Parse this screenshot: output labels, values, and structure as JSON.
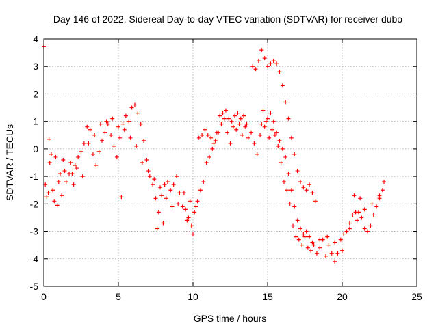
{
  "chart_data": {
    "type": "scatter",
    "title": "Day 146 of 2022, Sidereal Day-to-day VTEC variation (SDTVAR) for receiver dubo",
    "xlabel": "GPS time / hours",
    "ylabel": "SDTVAR / TECUs",
    "xlim": [
      0,
      25
    ],
    "ylim": [
      -5,
      4
    ],
    "xticks": [
      0,
      5,
      10,
      15,
      20,
      25
    ],
    "yticks": [
      -5,
      -4,
      -3,
      -2,
      -1,
      0,
      1,
      2,
      3,
      4
    ],
    "grid": true,
    "marker": "+",
    "color": "#ff0000",
    "series": [
      {
        "name": "SDTVAR",
        "points": [
          [
            0.0,
            3.72
          ],
          [
            0.1,
            -1.3
          ],
          [
            0.2,
            -1.75
          ],
          [
            0.3,
            -1.6
          ],
          [
            0.35,
            0.35
          ],
          [
            0.5,
            -0.2
          ],
          [
            0.7,
            -1.9
          ],
          [
            0.9,
            -2.05
          ],
          [
            1.1,
            -0.9
          ],
          [
            1.3,
            -0.4
          ],
          [
            1.5,
            -1.2
          ],
          [
            1.7,
            -0.9
          ],
          [
            1.9,
            -0.9
          ],
          [
            2.1,
            -0.6
          ],
          [
            2.3,
            -0.3
          ],
          [
            2.5,
            -0.1
          ],
          [
            2.7,
            0.2
          ],
          [
            2.9,
            0.8
          ],
          [
            3.1,
            0.7
          ],
          [
            3.3,
            -0.2
          ],
          [
            3.5,
            -0.6
          ],
          [
            3.7,
            -0.1
          ],
          [
            3.9,
            0.3
          ],
          [
            4.1,
            0.6
          ],
          [
            4.3,
            0.9
          ],
          [
            4.5,
            0.5
          ],
          [
            4.7,
            0.1
          ],
          [
            4.9,
            -0.3
          ],
          [
            5.1,
            0.4
          ],
          [
            5.3,
            0.9
          ],
          [
            5.5,
            1.2
          ],
          [
            5.7,
            1.0
          ],
          [
            5.9,
            1.5
          ],
          [
            6.1,
            1.6
          ],
          [
            6.3,
            1.3
          ],
          [
            6.5,
            0.9
          ],
          [
            6.7,
            0.3
          ],
          [
            6.9,
            -0.4
          ],
          [
            7.1,
            -1.0
          ],
          [
            7.3,
            -1.3
          ],
          [
            7.5,
            -1.8
          ],
          [
            7.7,
            -2.3
          ],
          [
            7.9,
            -1.7
          ],
          [
            8.1,
            -1.3
          ],
          [
            8.3,
            -1.2
          ],
          [
            8.5,
            -1.5
          ],
          [
            8.7,
            -1.3
          ],
          [
            8.9,
            -1.0
          ],
          [
            9.1,
            -1.6
          ],
          [
            9.3,
            -2.1
          ],
          [
            9.5,
            -2.2
          ],
          [
            9.7,
            -2.5
          ],
          [
            9.9,
            -2.8
          ],
          [
            10.1,
            -2.3
          ],
          [
            10.3,
            -1.9
          ],
          [
            10.5,
            -1.5
          ],
          [
            10.7,
            -1.2
          ],
          [
            10.9,
            -0.5
          ],
          [
            11.1,
            -0.3
          ],
          [
            11.3,
            0.0
          ],
          [
            11.5,
            0.3
          ],
          [
            11.7,
            0.6
          ],
          [
            11.9,
            0.9
          ],
          [
            12.1,
            1.1
          ],
          [
            12.3,
            0.6
          ],
          [
            12.5,
            0.2
          ],
          [
            12.7,
            0.8
          ],
          [
            12.9,
            0.7
          ],
          [
            13.1,
            0.9
          ],
          [
            13.3,
            0.5
          ],
          [
            13.5,
            0.8
          ],
          [
            13.7,
            0.4
          ],
          [
            13.9,
            0.6
          ],
          [
            14.1,
            0.2
          ],
          [
            14.3,
            -0.2
          ],
          [
            14.5,
            0.5
          ],
          [
            14.7,
            1.4
          ],
          [
            14.9,
            1.0
          ],
          [
            15.1,
            0.4
          ],
          [
            15.3,
            0.7
          ],
          [
            15.5,
            0.5
          ],
          [
            15.7,
            0.1
          ],
          [
            15.9,
            -0.5
          ],
          [
            16.1,
            -1.2
          ],
          [
            16.3,
            -1.5
          ],
          [
            16.5,
            -2.0
          ],
          [
            16.7,
            -2.8
          ],
          [
            16.9,
            -3.2
          ],
          [
            17.1,
            -3.3
          ],
          [
            17.3,
            -3.5
          ],
          [
            17.5,
            -3.2
          ],
          [
            17.7,
            -3.6
          ],
          [
            17.9,
            -3.7
          ],
          [
            18.1,
            -3.5
          ],
          [
            18.3,
            -3.8
          ],
          [
            18.5,
            -3.6
          ],
          [
            18.7,
            -3.3
          ],
          [
            18.9,
            -3.9
          ],
          [
            19.1,
            -3.5
          ],
          [
            19.3,
            -3.8
          ],
          [
            19.5,
            -4.1
          ],
          [
            19.7,
            -3.8
          ],
          [
            19.9,
            -3.3
          ],
          [
            20.1,
            -3.1
          ],
          [
            20.3,
            -3.0
          ],
          [
            20.5,
            -2.7
          ],
          [
            20.7,
            -2.4
          ],
          [
            20.9,
            -2.3
          ],
          [
            21.1,
            -2.3
          ],
          [
            21.3,
            -2.5
          ],
          [
            21.5,
            -2.9
          ],
          [
            21.7,
            -3.0
          ],
          [
            21.9,
            -2.8
          ],
          [
            22.1,
            -2.4
          ],
          [
            22.3,
            -2.1
          ],
          [
            22.5,
            -1.8
          ],
          [
            22.7,
            -1.5
          ],
          [
            22.8,
            -1.2
          ],
          [
            14.0,
            3.0
          ],
          [
            14.2,
            2.9
          ],
          [
            14.4,
            3.2
          ],
          [
            14.6,
            3.6
          ],
          [
            14.8,
            3.3
          ],
          [
            15.0,
            3.0
          ],
          [
            15.2,
            3.1
          ],
          [
            15.4,
            3.2
          ],
          [
            15.6,
            3.1
          ],
          [
            15.8,
            2.8
          ],
          [
            16.0,
            2.3
          ],
          [
            16.2,
            1.7
          ],
          [
            16.4,
            1.1
          ],
          [
            16.6,
            0.4
          ],
          [
            16.8,
            -0.2
          ],
          [
            17.0,
            -0.8
          ],
          [
            17.2,
            -1.2
          ],
          [
            17.4,
            -1.4
          ],
          [
            17.6,
            -1.5
          ],
          [
            17.8,
            -1.3
          ],
          [
            18.0,
            -1.6
          ],
          [
            18.2,
            -1.9
          ],
          [
            14.6,
            0.9
          ],
          [
            14.8,
            0.8
          ],
          [
            15.0,
            1.1
          ],
          [
            15.2,
            1.3
          ],
          [
            15.4,
            1.0
          ],
          [
            15.6,
            0.6
          ],
          [
            15.8,
            0.3
          ],
          [
            16.0,
            0.0
          ],
          [
            16.2,
            -0.3
          ],
          [
            16.4,
            -0.9
          ],
          [
            16.6,
            -1.5
          ],
          [
            16.8,
            -2.1
          ],
          [
            17.0,
            -2.6
          ],
          [
            17.2,
            -2.9
          ],
          [
            17.4,
            -3.1
          ],
          [
            17.6,
            -3.0
          ],
          [
            17.8,
            -3.2
          ],
          [
            18.0,
            -3.4
          ],
          [
            10.4,
            0.4
          ],
          [
            10.6,
            0.5
          ],
          [
            10.8,
            0.7
          ],
          [
            11.0,
            0.5
          ],
          [
            11.2,
            0.4
          ],
          [
            11.4,
            0.2
          ],
          [
            11.6,
            0.6
          ],
          [
            11.8,
            1.2
          ],
          [
            12.0,
            1.3
          ],
          [
            12.2,
            1.4
          ],
          [
            12.4,
            1.1
          ],
          [
            12.6,
            1.0
          ],
          [
            12.8,
            1.2
          ],
          [
            13.0,
            1.3
          ],
          [
            13.2,
            1.1
          ],
          [
            13.4,
            1.2
          ],
          [
            13.6,
            0.9
          ],
          [
            3.0,
            0.2
          ],
          [
            3.4,
            0.5
          ],
          [
            3.8,
            0.9
          ],
          [
            4.2,
            1.0
          ],
          [
            4.6,
            1.1
          ],
          [
            5.0,
            0.8
          ],
          [
            5.4,
            0.7
          ],
          [
            5.8,
            0.4
          ],
          [
            6.2,
            0.1
          ],
          [
            6.6,
            -0.5
          ],
          [
            7.0,
            -0.8
          ],
          [
            7.4,
            -1.1
          ],
          [
            7.8,
            -1.4
          ],
          [
            8.2,
            -1.8
          ],
          [
            8.6,
            -2.1
          ],
          [
            9.0,
            -2.0
          ],
          [
            9.4,
            -1.6
          ],
          [
            9.8,
            -1.9
          ],
          [
            10.2,
            -2.1
          ],
          [
            10.0,
            -3.1
          ],
          [
            9.6,
            -2.6
          ],
          [
            8.0,
            -2.7
          ],
          [
            7.6,
            -2.9
          ],
          [
            1.0,
            -1.2
          ],
          [
            1.4,
            -0.8
          ],
          [
            1.8,
            -0.5
          ],
          [
            2.2,
            -0.7
          ],
          [
            2.6,
            -1.0
          ],
          [
            2.0,
            -1.3
          ],
          [
            1.2,
            -1.7
          ],
          [
            0.6,
            -1.5
          ],
          [
            0.4,
            -0.5
          ],
          [
            0.8,
            -0.3
          ],
          [
            5.2,
            -1.75
          ],
          [
            18.5,
            -3.3
          ],
          [
            19.0,
            -3.2
          ],
          [
            19.5,
            -3.4
          ],
          [
            20.0,
            -3.7
          ],
          [
            20.5,
            -2.9
          ],
          [
            21.0,
            -2.6
          ],
          [
            21.5,
            -2.2
          ],
          [
            22.0,
            -2.0
          ],
          [
            22.5,
            -1.7
          ],
          [
            21.2,
            -1.8
          ],
          [
            20.8,
            -1.7
          ]
        ]
      }
    ]
  }
}
